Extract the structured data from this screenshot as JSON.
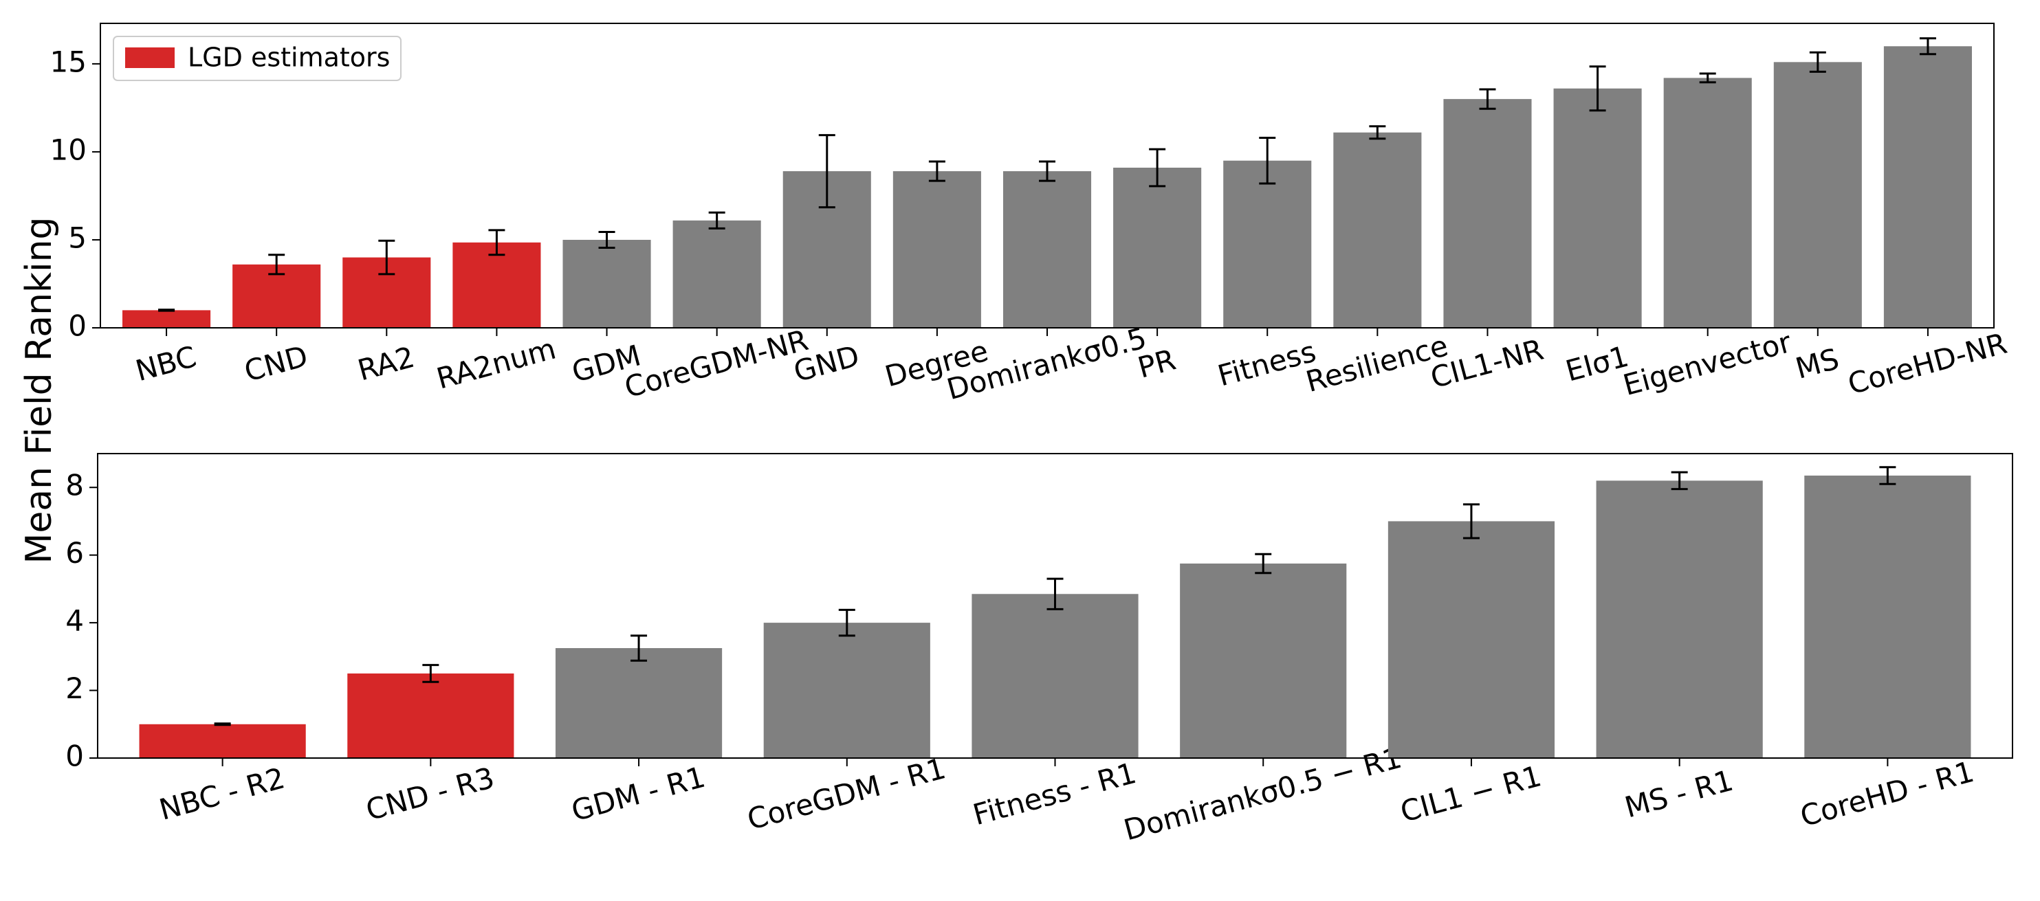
{
  "chart_data": [
    {
      "type": "bar",
      "ylabel": "Mean Field Ranking",
      "legend_label": "LGD estimators",
      "legend_color": "#d62728",
      "legend_loc": "upper left",
      "categories": [
        "NBC",
        "CND",
        "RA2",
        "RA2num",
        "GDM",
        "CoreGDM-NR",
        "GND",
        "Degree",
        "Domirankσ0.5",
        "PR",
        "Fitness",
        "Resilience",
        "CIL1-NR",
        "EIσ1",
        "Eigenvector",
        "MS",
        "CoreHD-NR"
      ],
      "values": [
        1.0,
        3.6,
        4.0,
        4.85,
        5.0,
        6.1,
        8.9,
        8.9,
        8.9,
        9.1,
        9.5,
        11.1,
        13.0,
        13.6,
        14.2,
        15.1,
        16.0
      ],
      "errors": [
        0.03,
        0.55,
        0.95,
        0.7,
        0.45,
        0.45,
        2.05,
        0.55,
        0.55,
        1.05,
        1.3,
        0.35,
        0.55,
        1.25,
        0.25,
        0.55,
        0.45
      ],
      "colors": [
        "#d62728",
        "#d62728",
        "#d62728",
        "#d62728",
        "#808080",
        "#808080",
        "#808080",
        "#808080",
        "#808080",
        "#808080",
        "#808080",
        "#808080",
        "#808080",
        "#808080",
        "#808080",
        "#808080",
        "#808080"
      ],
      "ylim": [
        0,
        17.3
      ],
      "yticks": [
        0,
        5,
        10,
        15
      ]
    },
    {
      "type": "bar",
      "categories": [
        "NBC - R2",
        "CND - R3",
        "GDM - R1",
        "CoreGDM - R1",
        "Fitness - R1",
        "Domirankσ0.5 − R1",
        "CIL1 − R1",
        "MS - R1",
        "CoreHD - R1"
      ],
      "values": [
        1.0,
        2.5,
        3.25,
        4.0,
        4.85,
        5.75,
        7.0,
        8.2,
        8.35
      ],
      "errors": [
        0.02,
        0.25,
        0.37,
        0.38,
        0.45,
        0.28,
        0.5,
        0.25,
        0.25
      ],
      "colors": [
        "#d62728",
        "#d62728",
        "#808080",
        "#808080",
        "#808080",
        "#808080",
        "#808080",
        "#808080",
        "#808080"
      ],
      "ylim": [
        0,
        9.0
      ],
      "yticks": [
        0,
        2,
        4,
        6,
        8
      ]
    }
  ]
}
